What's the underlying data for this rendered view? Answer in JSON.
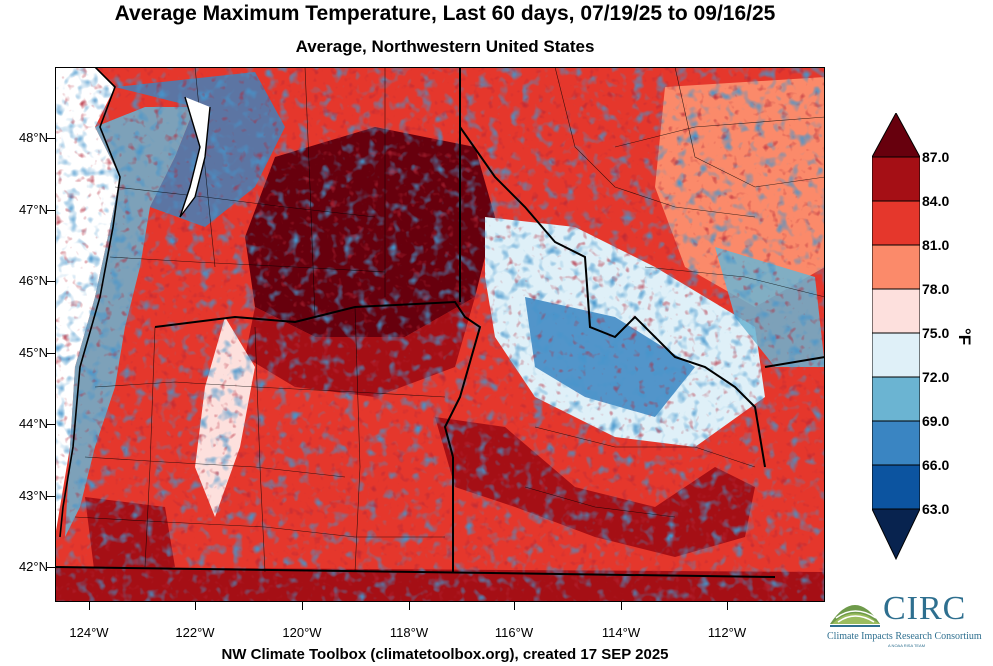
{
  "title": "Average Maximum Temperature, Last 60 days, 07/19/25 to 09/16/25",
  "subtitle": "Average, Northwestern United States",
  "credit": "NW Climate Toolbox (climatetoolbox.org), created 17 SEP 2025",
  "x_ticks": [
    "124°W",
    "122°W",
    "120°W",
    "118°W",
    "116°W",
    "114°W",
    "112°W"
  ],
  "y_ticks": [
    "48°N",
    "47°N",
    "46°N",
    "45°N",
    "44°N",
    "43°N",
    "42°N"
  ],
  "colorbar": {
    "unit": "°F",
    "labels": [
      "87.0",
      "84.0",
      "81.0",
      "78.0",
      "75.0",
      "72.0",
      "69.0",
      "66.0",
      "63.0"
    ],
    "colors": [
      "#67000d",
      "#a50f15",
      "#e5372c",
      "#fb8a6a",
      "#fde0dd",
      "#dff0f8",
      "#6bb4d2",
      "#3a85c2",
      "#0c54a0",
      "#08234f"
    ]
  },
  "logo": {
    "name": "CIRC",
    "full_name": "Climate Impacts Research Consortium",
    "tagline": "A NOAA RISA TEAM"
  }
}
